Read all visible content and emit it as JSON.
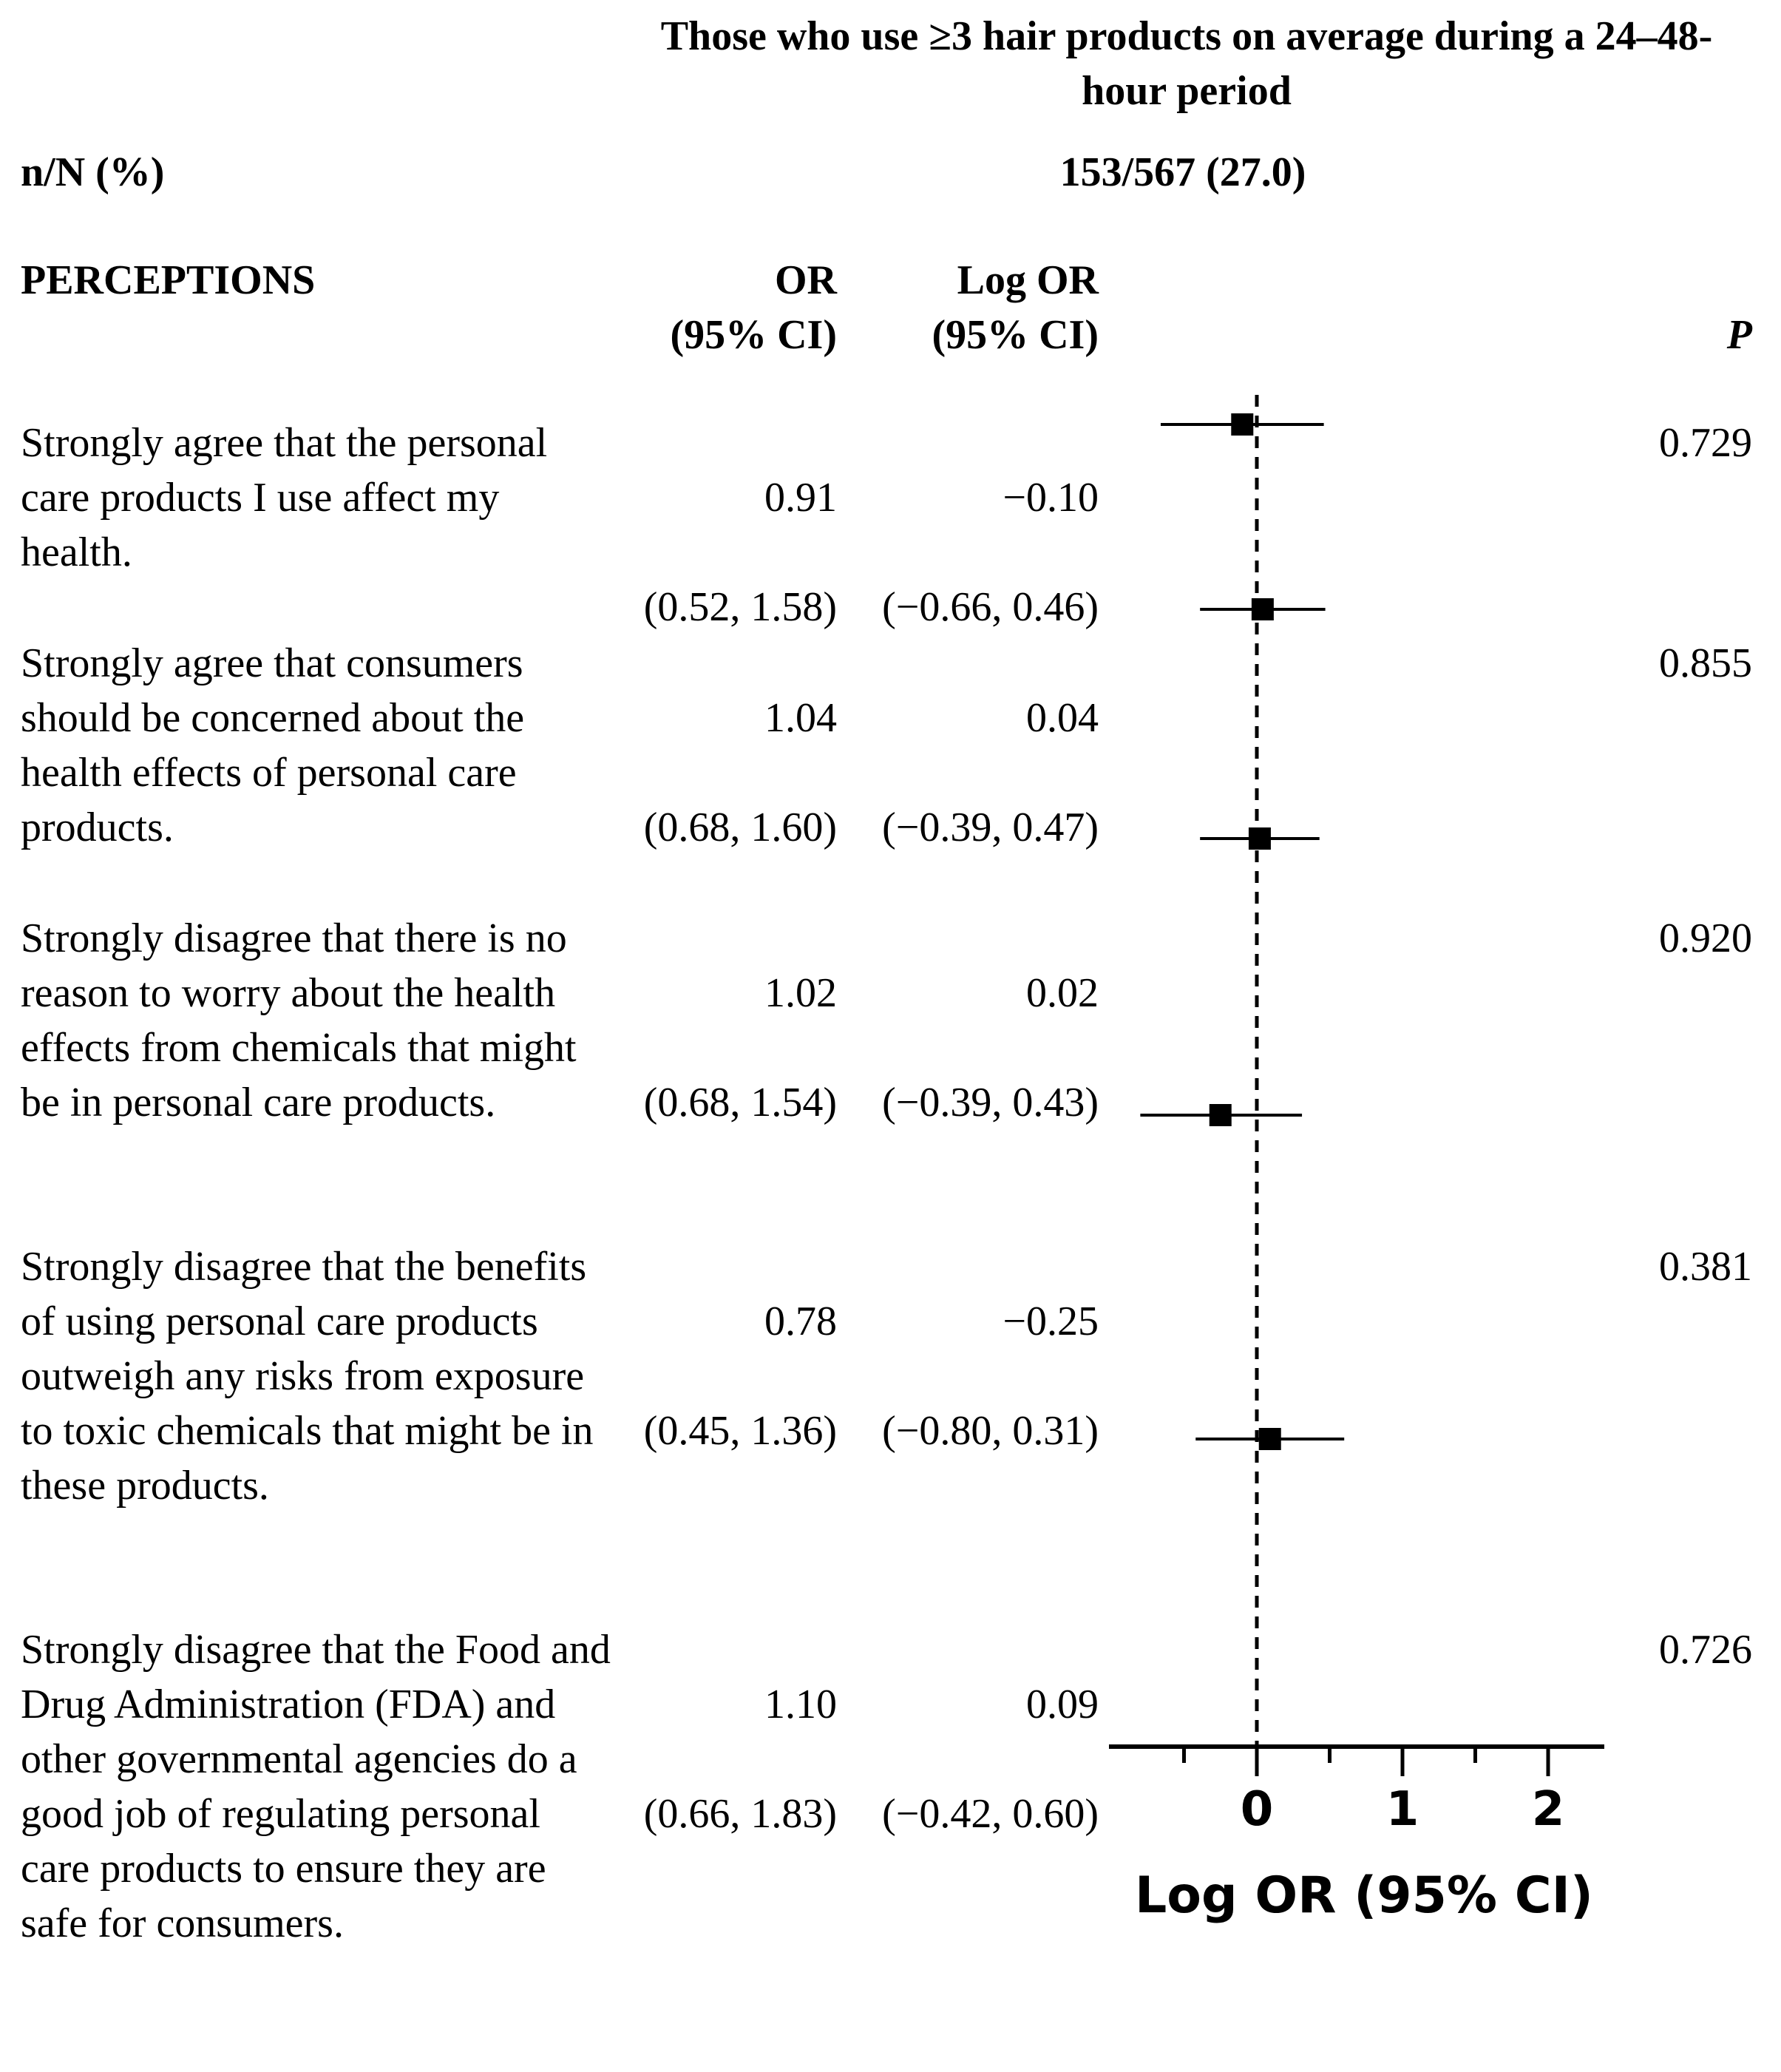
{
  "header": {
    "group_title_line1": "Those who use ≥3 hair products on average during a 24–48-",
    "group_title_line2": "hour period",
    "nN_label": "n/N (%)",
    "nN_value": "153/567 (27.0)",
    "section_label": "PERCEPTIONS",
    "or_header_line1": "OR",
    "or_header_line2": "(95% CI)",
    "logor_header_line1": "Log OR",
    "logor_header_line2": "(95% CI)",
    "p_header": "P"
  },
  "rows": [
    {
      "label": "Strongly agree that the personal care products I use affect my health.",
      "or": "0.91",
      "or_ci": "(0.52, 1.58)",
      "logor": "−0.10",
      "logor_ci": "(−0.66, 0.46)",
      "p": "0.729"
    },
    {
      "label": "Strongly agree that consumers should be concerned about the health effects of personal care products.",
      "or": "1.04",
      "or_ci": "(0.68, 1.60)",
      "logor": "0.04",
      "logor_ci": "(−0.39, 0.47)",
      "p": "0.855"
    },
    {
      "label": "Strongly disagree that there is no reason to worry about the health effects from chemicals that might be in personal care products.",
      "or": "1.02",
      "or_ci": "(0.68, 1.54)",
      "logor": "0.02",
      "logor_ci": "(−0.39, 0.43)",
      "p": "0.920"
    },
    {
      "label": "Strongly disagree that the benefits of using personal care products outweigh any risks from exposure to toxic chemicals that might be in these products.",
      "or": "0.78",
      "or_ci": "(0.45, 1.36)",
      "logor": "−0.25",
      "logor_ci": "(−0.80, 0.31)",
      "p": "0.381"
    },
    {
      "label": "Strongly disagree that the Food and Drug Administration (FDA) and other governmental agencies do a good job of regulating personal care products to ensure they are safe for consumers.",
      "or": "1.10",
      "or_ci": "(0.66, 1.83)",
      "logor": "0.09",
      "logor_ci": "(−0.42, 0.60)",
      "p": "0.726"
    }
  ],
  "chart_data": {
    "type": "forest",
    "xlabel": "Log OR (95% CI)",
    "xticks": [
      0,
      1,
      2
    ],
    "xlim": [
      -1,
      2.4
    ],
    "reference_line": 0,
    "series": [
      {
        "estimate": [
          -0.1,
          0.04,
          0.02,
          -0.25,
          0.09
        ],
        "ci_low": [
          -0.66,
          -0.39,
          -0.39,
          -0.8,
          -0.42
        ],
        "ci_high": [
          0.46,
          0.47,
          0.43,
          0.31,
          0.6
        ]
      }
    ]
  }
}
